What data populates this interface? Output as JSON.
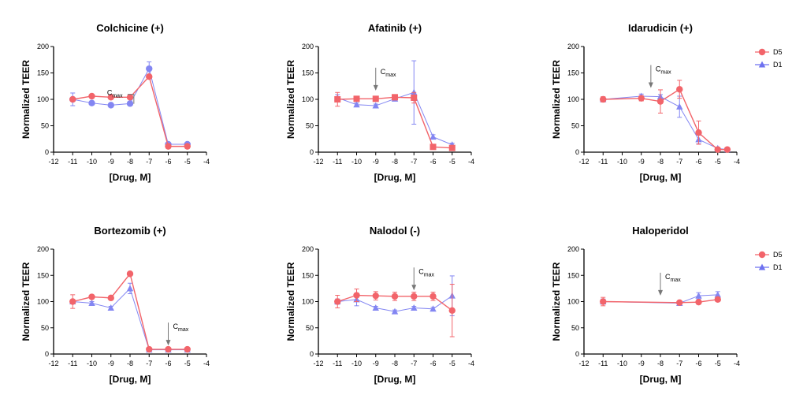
{
  "figure_title": "",
  "colors": {
    "D5": "#f2646a",
    "D1": "#6e72f0",
    "annotation": "#777777"
  },
  "chart_data": [
    {
      "type": "line",
      "title": "Colchicine (+)",
      "xlabel": "[Drug, M]",
      "ylabel": "Normalized TEER",
      "xlim": [
        -12,
        -4
      ],
      "ylim": [
        0,
        200
      ],
      "xticks": [
        -12,
        -11,
        -10,
        -9,
        -8,
        -7,
        -6,
        -5,
        -4
      ],
      "yticks": [
        0,
        50,
        100,
        150,
        200
      ],
      "legend": false,
      "series": [
        {
          "name": "D5",
          "marker": "circle",
          "x": [
            -11,
            -10,
            -9,
            -8,
            -7,
            -6,
            -5
          ],
          "y": [
            100,
            106,
            104,
            104,
            143,
            11,
            11
          ],
          "err": [
            0,
            0,
            0,
            0,
            0,
            0,
            0
          ]
        },
        {
          "name": "D1",
          "marker": "circle",
          "x": [
            -11,
            -10,
            -9,
            -8,
            -7,
            -6,
            -5
          ],
          "y": [
            100,
            93,
            89,
            92,
            158,
            15,
            15
          ],
          "err": [
            12,
            3,
            2,
            3,
            13,
            2,
            2
          ]
        }
      ],
      "annotation": {
        "text": "C",
        "subscript": "max",
        "x": -7.8,
        "style": "bracket"
      }
    },
    {
      "type": "line",
      "title": "Afatinib (+)",
      "xlabel": "[Drug, M]",
      "ylabel": "Normalized TEER",
      "xlim": [
        -12,
        -4
      ],
      "ylim": [
        0,
        200
      ],
      "xticks": [
        -12,
        -11,
        -10,
        -9,
        -8,
        -7,
        -6,
        -5,
        -4
      ],
      "yticks": [
        0,
        50,
        100,
        150,
        200
      ],
      "legend": false,
      "series": [
        {
          "name": "D5",
          "marker": "square",
          "x": [
            -11,
            -10,
            -9,
            -8,
            -7,
            -6,
            -5
          ],
          "y": [
            100,
            101,
            101,
            104,
            103,
            10,
            8
          ],
          "err": [
            13,
            3,
            3,
            5,
            10,
            2,
            2
          ]
        },
        {
          "name": "D1",
          "marker": "triangle",
          "x": [
            -11,
            -10,
            -9,
            -8,
            -7,
            -6,
            -5
          ],
          "y": [
            103,
            90,
            88,
            101,
            113,
            29,
            14
          ],
          "err": [
            6,
            3,
            3,
            3,
            60,
            4,
            3
          ]
        }
      ],
      "annotation": {
        "text": "C",
        "subscript": "max",
        "x": -9,
        "style": "arrow"
      }
    },
    {
      "type": "line",
      "title": "Idarudicin (+)",
      "xlabel": "[Drug, M]",
      "ylabel": "Normalized TEER",
      "xlim": [
        -12,
        -4
      ],
      "ylim": [
        0,
        200
      ],
      "xticks": [
        -12,
        -11,
        -10,
        -9,
        -8,
        -7,
        -6,
        -5,
        -4
      ],
      "yticks": [
        0,
        50,
        100,
        150,
        200
      ],
      "legend": true,
      "legend_labels": [
        "D5",
        "D1"
      ],
      "series": [
        {
          "name": "D5",
          "marker": "circle",
          "x": [
            -11,
            -9,
            -8,
            -7,
            -6,
            -5,
            -4.5
          ],
          "y": [
            100,
            102,
            96,
            119,
            37,
            5,
            5
          ],
          "err": [
            5,
            5,
            22,
            17,
            22,
            3,
            3
          ]
        },
        {
          "name": "D1",
          "marker": "triangle",
          "x": [
            -11,
            -9,
            -8,
            -7,
            -6,
            -5,
            -4.5
          ],
          "y": [
            100,
            106,
            105,
            86,
            24,
            7,
            5
          ],
          "err": [
            4,
            4,
            4,
            20,
            8,
            2,
            2
          ]
        }
      ],
      "annotation": {
        "text": "C",
        "subscript": "max",
        "x": -8.5,
        "style": "arrow"
      }
    },
    {
      "type": "line",
      "title": "Bortezomib (+)",
      "xlabel": "[Drug, M]",
      "ylabel": "Normalized TEER",
      "xlim": [
        -12,
        -4
      ],
      "ylim": [
        0,
        200
      ],
      "xticks": [
        -12,
        -11,
        -10,
        -9,
        -8,
        -7,
        -6,
        -5,
        -4
      ],
      "yticks": [
        0,
        50,
        100,
        150,
        200
      ],
      "legend": false,
      "series": [
        {
          "name": "D5",
          "marker": "circle",
          "x": [
            -11,
            -10,
            -9,
            -8,
            -7,
            -6,
            -5
          ],
          "y": [
            100,
            109,
            107,
            153,
            9,
            9,
            9
          ],
          "err": [
            13,
            3,
            3,
            3,
            2,
            2,
            2
          ]
        },
        {
          "name": "D1",
          "marker": "triangle",
          "x": [
            -11,
            -10,
            -9,
            -8,
            -7,
            -6,
            -5
          ],
          "y": [
            100,
            97,
            88,
            125,
            8,
            8,
            8
          ],
          "err": [
            4,
            3,
            3,
            10,
            2,
            2,
            2
          ]
        }
      ],
      "annotation": {
        "text": "C",
        "subscript": "max",
        "x": -6,
        "style": "arrow"
      }
    },
    {
      "type": "line",
      "title": "Nalodol (-)",
      "xlabel": "[Drug, M]",
      "ylabel": "Normalized TEER",
      "xlim": [
        -12,
        -4
      ],
      "ylim": [
        0,
        200
      ],
      "xticks": [
        -12,
        -11,
        -10,
        -9,
        -8,
        -7,
        -6,
        -5,
        -4
      ],
      "yticks": [
        0,
        50,
        100,
        150,
        200
      ],
      "legend": false,
      "series": [
        {
          "name": "D5",
          "marker": "circle",
          "x": [
            -11,
            -10,
            -9,
            -8,
            -7,
            -6,
            -5
          ],
          "y": [
            100,
            112,
            111,
            110,
            110,
            110,
            83
          ],
          "err": [
            12,
            12,
            8,
            8,
            8,
            8,
            50
          ]
        },
        {
          "name": "D1",
          "marker": "triangle",
          "x": [
            -11,
            -10,
            -9,
            -8,
            -7,
            -6,
            -5
          ],
          "y": [
            100,
            104,
            88,
            81,
            88,
            86,
            111
          ],
          "err": [
            5,
            12,
            3,
            3,
            3,
            3,
            38
          ]
        }
      ],
      "annotation": {
        "text": "C",
        "subscript": "max",
        "x": -7,
        "style": "arrow"
      }
    },
    {
      "type": "line",
      "title": "Haloperidol",
      "xlabel": "[Drug, M]",
      "ylabel": "Normalized TEER",
      "xlim": [
        -12,
        -4
      ],
      "ylim": [
        0,
        200
      ],
      "xticks": [
        -12,
        -11,
        -10,
        -9,
        -8,
        -7,
        -6,
        -5,
        -4
      ],
      "yticks": [
        0,
        50,
        100,
        150,
        200
      ],
      "legend": true,
      "legend_labels": [
        "D5",
        "D1"
      ],
      "series": [
        {
          "name": "D5",
          "marker": "circle",
          "x": [
            -11,
            -7,
            -6,
            -5
          ],
          "y": [
            100,
            98,
            99,
            104
          ],
          "err": [
            8,
            3,
            3,
            3
          ]
        },
        {
          "name": "D1",
          "marker": "triangle",
          "x": [
            -11,
            -7,
            -6,
            -5
          ],
          "y": [
            100,
            97,
            111,
            113
          ],
          "err": [
            5,
            3,
            6,
            6
          ]
        }
      ],
      "annotation": {
        "text": "C",
        "subscript": "max",
        "x": -8,
        "style": "arrow"
      }
    }
  ]
}
